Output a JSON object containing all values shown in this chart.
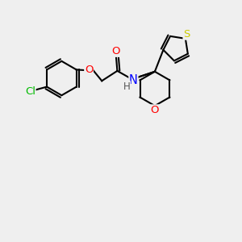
{
  "bg_color": "#efefef",
  "bond_color": "#000000",
  "bond_width": 1.5,
  "atom_colors": {
    "Cl": "#00bb00",
    "O": "#ff0000",
    "N": "#0000ff",
    "S": "#cccc00",
    "C": "#000000",
    "H": "#555555"
  },
  "font_size": 9.5,
  "xlim": [
    0,
    10
  ],
  "ylim": [
    0,
    10
  ]
}
